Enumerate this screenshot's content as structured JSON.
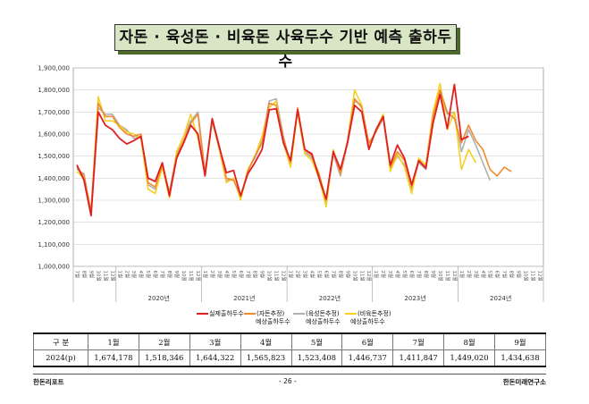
{
  "title": "자돈 · 육성돈 · 비육돈 사육두수 기반 예측 출하두수",
  "chart_data": {
    "type": "line",
    "ylim": [
      1000000,
      1900000
    ],
    "yticks": [
      "1,000,000",
      "1,100,000",
      "1,200,000",
      "1,300,000",
      "1,400,000",
      "1,500,000",
      "1,600,000",
      "1,700,000",
      "1,800,000",
      "1,900,000"
    ],
    "xtick_labels": [
      "7월",
      "8월",
      "9월",
      "10월",
      "11월",
      "12월",
      "1월",
      "2월",
      "3월",
      "4월",
      "5월",
      "6월",
      "7월",
      "8월",
      "9월",
      "10월",
      "11월",
      "12월",
      "1월",
      "2월",
      "3월",
      "4월",
      "5월",
      "6월",
      "7월",
      "8월",
      "9월",
      "10월",
      "11월",
      "12월",
      "1월",
      "2월",
      "3월",
      "4월",
      "5월",
      "6월",
      "7월",
      "8월",
      "9월",
      "10월",
      "11월",
      "12월",
      "1월",
      "2월",
      "3월",
      "4월",
      "5월",
      "6월",
      "7월",
      "8월",
      "9월",
      "10월",
      "11월",
      "12월",
      "1월",
      "2월",
      "3월",
      "4월",
      "5월",
      "6월",
      "7월",
      "8월",
      "9월",
      "10월",
      "11월",
      "12월"
    ],
    "year_labels": [
      {
        "label": "2020년",
        "center": 11.5
      },
      {
        "label": "2021년",
        "center": 23.5
      },
      {
        "label": "2022년",
        "center": 35.5
      },
      {
        "label": "2023년",
        "center": 47.5
      },
      {
        "label": "2024년",
        "center": 59.5
      }
    ],
    "grid": true,
    "legend_position": "bottom",
    "series": [
      {
        "name": "실제출하두수",
        "color": "#e02020",
        "values": [
          1460000,
          1390000,
          1230000,
          1700000,
          1640000,
          1620000,
          1580000,
          1555000,
          1570000,
          1590000,
          1400000,
          1385000,
          1470000,
          1320000,
          1490000,
          1560000,
          1640000,
          1600000,
          1410000,
          1670000,
          1540000,
          1425000,
          1435000,
          1320000,
          1420000,
          1470000,
          1530000,
          1710000,
          1715000,
          1560000,
          1480000,
          1710000,
          1530000,
          1510000,
          1400000,
          1305000,
          1520000,
          1440000,
          1560000,
          1730000,
          1700000,
          1530000,
          1620000,
          1680000,
          1460000,
          1550000,
          1490000,
          1370000,
          1480000,
          1445000,
          1650000,
          1780000,
          1625000,
          1825000,
          1575000,
          1590000
        ]
      },
      {
        "name": "(자돈추정)",
        "sublabel": "예상출하두수",
        "color": "#f08a30",
        "values": [
          1450000,
          1410000,
          1250000,
          1740000,
          1680000,
          1680000,
          1630000,
          1600000,
          1590000,
          1600000,
          1380000,
          1360000,
          1460000,
          1330000,
          1500000,
          1570000,
          1650000,
          1690000,
          1420000,
          1660000,
          1540000,
          1400000,
          1390000,
          1320000,
          1430000,
          1500000,
          1560000,
          1740000,
          1730000,
          1580000,
          1470000,
          1720000,
          1530000,
          1500000,
          1420000,
          1300000,
          1520000,
          1420000,
          1570000,
          1760000,
          1720000,
          1560000,
          1610000,
          1680000,
          1450000,
          1520000,
          1480000,
          1360000,
          1480000,
          1450000,
          1680000,
          1800000,
          1700000,
          1670000,
          1560000,
          1640000,
          1570000,
          1530000,
          1440000,
          1410000,
          1450000,
          1430000
        ]
      },
      {
        "name": "(육성돈추정)",
        "sublabel": "예상출하두수",
        "color": "#b0b0b0",
        "values": [
          1440000,
          1420000,
          1240000,
          1720000,
          1690000,
          1690000,
          1640000,
          1620000,
          1580000,
          1590000,
          1370000,
          1350000,
          1450000,
          1340000,
          1510000,
          1590000,
          1660000,
          1700000,
          1430000,
          1670000,
          1550000,
          1390000,
          1395000,
          1310000,
          1440000,
          1490000,
          1570000,
          1750000,
          1760000,
          1590000,
          1460000,
          1710000,
          1520000,
          1490000,
          1410000,
          1280000,
          1510000,
          1410000,
          1560000,
          1750000,
          1730000,
          1550000,
          1610000,
          1670000,
          1440000,
          1500000,
          1460000,
          1350000,
          1470000,
          1440000,
          1670000,
          1790000,
          1690000,
          1700000,
          1520000,
          1620000,
          1550000,
          1470000,
          1390000
        ]
      },
      {
        "name": "(비육돈추정)",
        "sublabel": "예상출하두수",
        "color": "#f5d020",
        "values": [
          1430000,
          1400000,
          1250000,
          1770000,
          1660000,
          1660000,
          1640000,
          1610000,
          1600000,
          1580000,
          1350000,
          1330000,
          1450000,
          1310000,
          1520000,
          1590000,
          1690000,
          1580000,
          1420000,
          1660000,
          1530000,
          1380000,
          1400000,
          1300000,
          1440000,
          1500000,
          1590000,
          1720000,
          1750000,
          1560000,
          1450000,
          1700000,
          1510000,
          1480000,
          1400000,
          1270000,
          1530000,
          1420000,
          1570000,
          1800000,
          1730000,
          1540000,
          1620000,
          1690000,
          1430000,
          1510000,
          1450000,
          1330000,
          1490000,
          1460000,
          1700000,
          1830000,
          1620000,
          1700000,
          1440000,
          1530000,
          1470000
        ]
      }
    ]
  },
  "table": {
    "row_header": "구 분",
    "columns": [
      "1월",
      "2월",
      "3월",
      "4월",
      "5월",
      "6월",
      "7월",
      "8월",
      "9월"
    ],
    "row_label": "2024(p)",
    "values": [
      "1,674,178",
      "1,518,346",
      "1,644,322",
      "1,565,823",
      "1,523,408",
      "1,446,737",
      "1,411,847",
      "1,449,020",
      "1,434,638"
    ]
  },
  "footer": {
    "left": "한돈리포트",
    "center": "- 26 -",
    "right": "한돈미래연구소"
  }
}
